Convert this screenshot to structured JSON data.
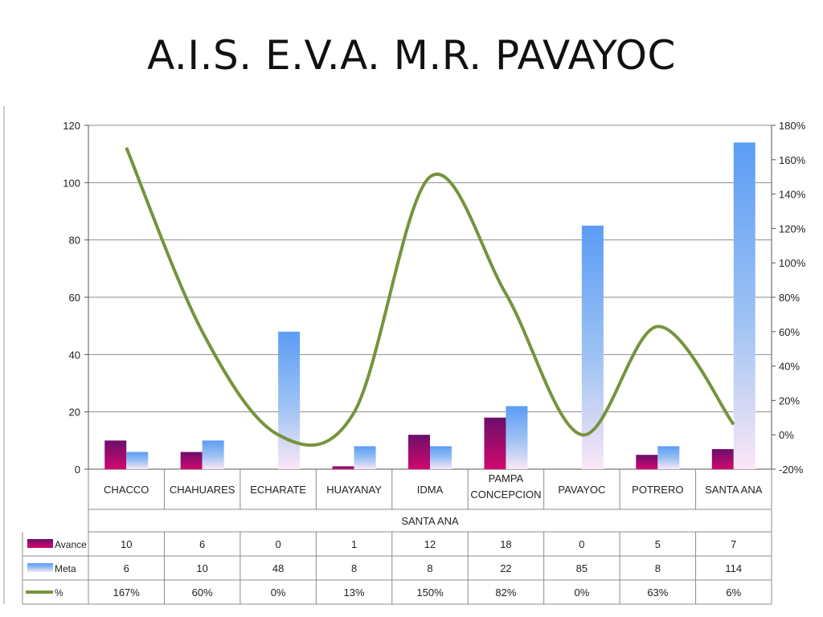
{
  "title": "A.I.S.  E.V.A.  M.R. PAVAYOC",
  "chart_data": {
    "type": "bar",
    "title": "",
    "group_label": "SANTA ANA",
    "categories": [
      "CHACCO",
      "CHAHUARES",
      "ECHARATE",
      "HUAYANAY",
      "IDMA",
      "PAMPA CONCEPCION",
      "PAVAYOC",
      "POTRERO",
      "SANTA ANA"
    ],
    "series": [
      {
        "name": "Avance",
        "type": "bar",
        "axis": "left",
        "values": [
          10,
          6,
          0,
          1,
          12,
          18,
          0,
          5,
          7
        ],
        "color": "#7b0d64"
      },
      {
        "name": "Meta",
        "type": "bar",
        "axis": "left",
        "values": [
          6,
          10,
          48,
          8,
          8,
          22,
          85,
          8,
          114
        ],
        "color": "#5b9cf5"
      },
      {
        "name": "%",
        "type": "line",
        "axis": "right",
        "values": [
          167,
          60,
          0,
          13,
          150,
          82,
          0,
          63,
          6
        ],
        "labels": [
          "167%",
          "60%",
          "0%",
          "13%",
          "150%",
          "82%",
          "0%",
          "63%",
          "6%"
        ],
        "color": "#77933c"
      }
    ],
    "y_left": {
      "min": 0,
      "max": 120,
      "ticks": [
        "0",
        "20",
        "40",
        "60",
        "80",
        "100",
        "120"
      ]
    },
    "y_right": {
      "min": -20,
      "max": 180,
      "ticks": [
        "-20%",
        "0%",
        "20%",
        "40%",
        "60%",
        "80%",
        "100%",
        "120%",
        "140%",
        "160%",
        "180%"
      ]
    },
    "grid": true,
    "legend": "data-table"
  }
}
